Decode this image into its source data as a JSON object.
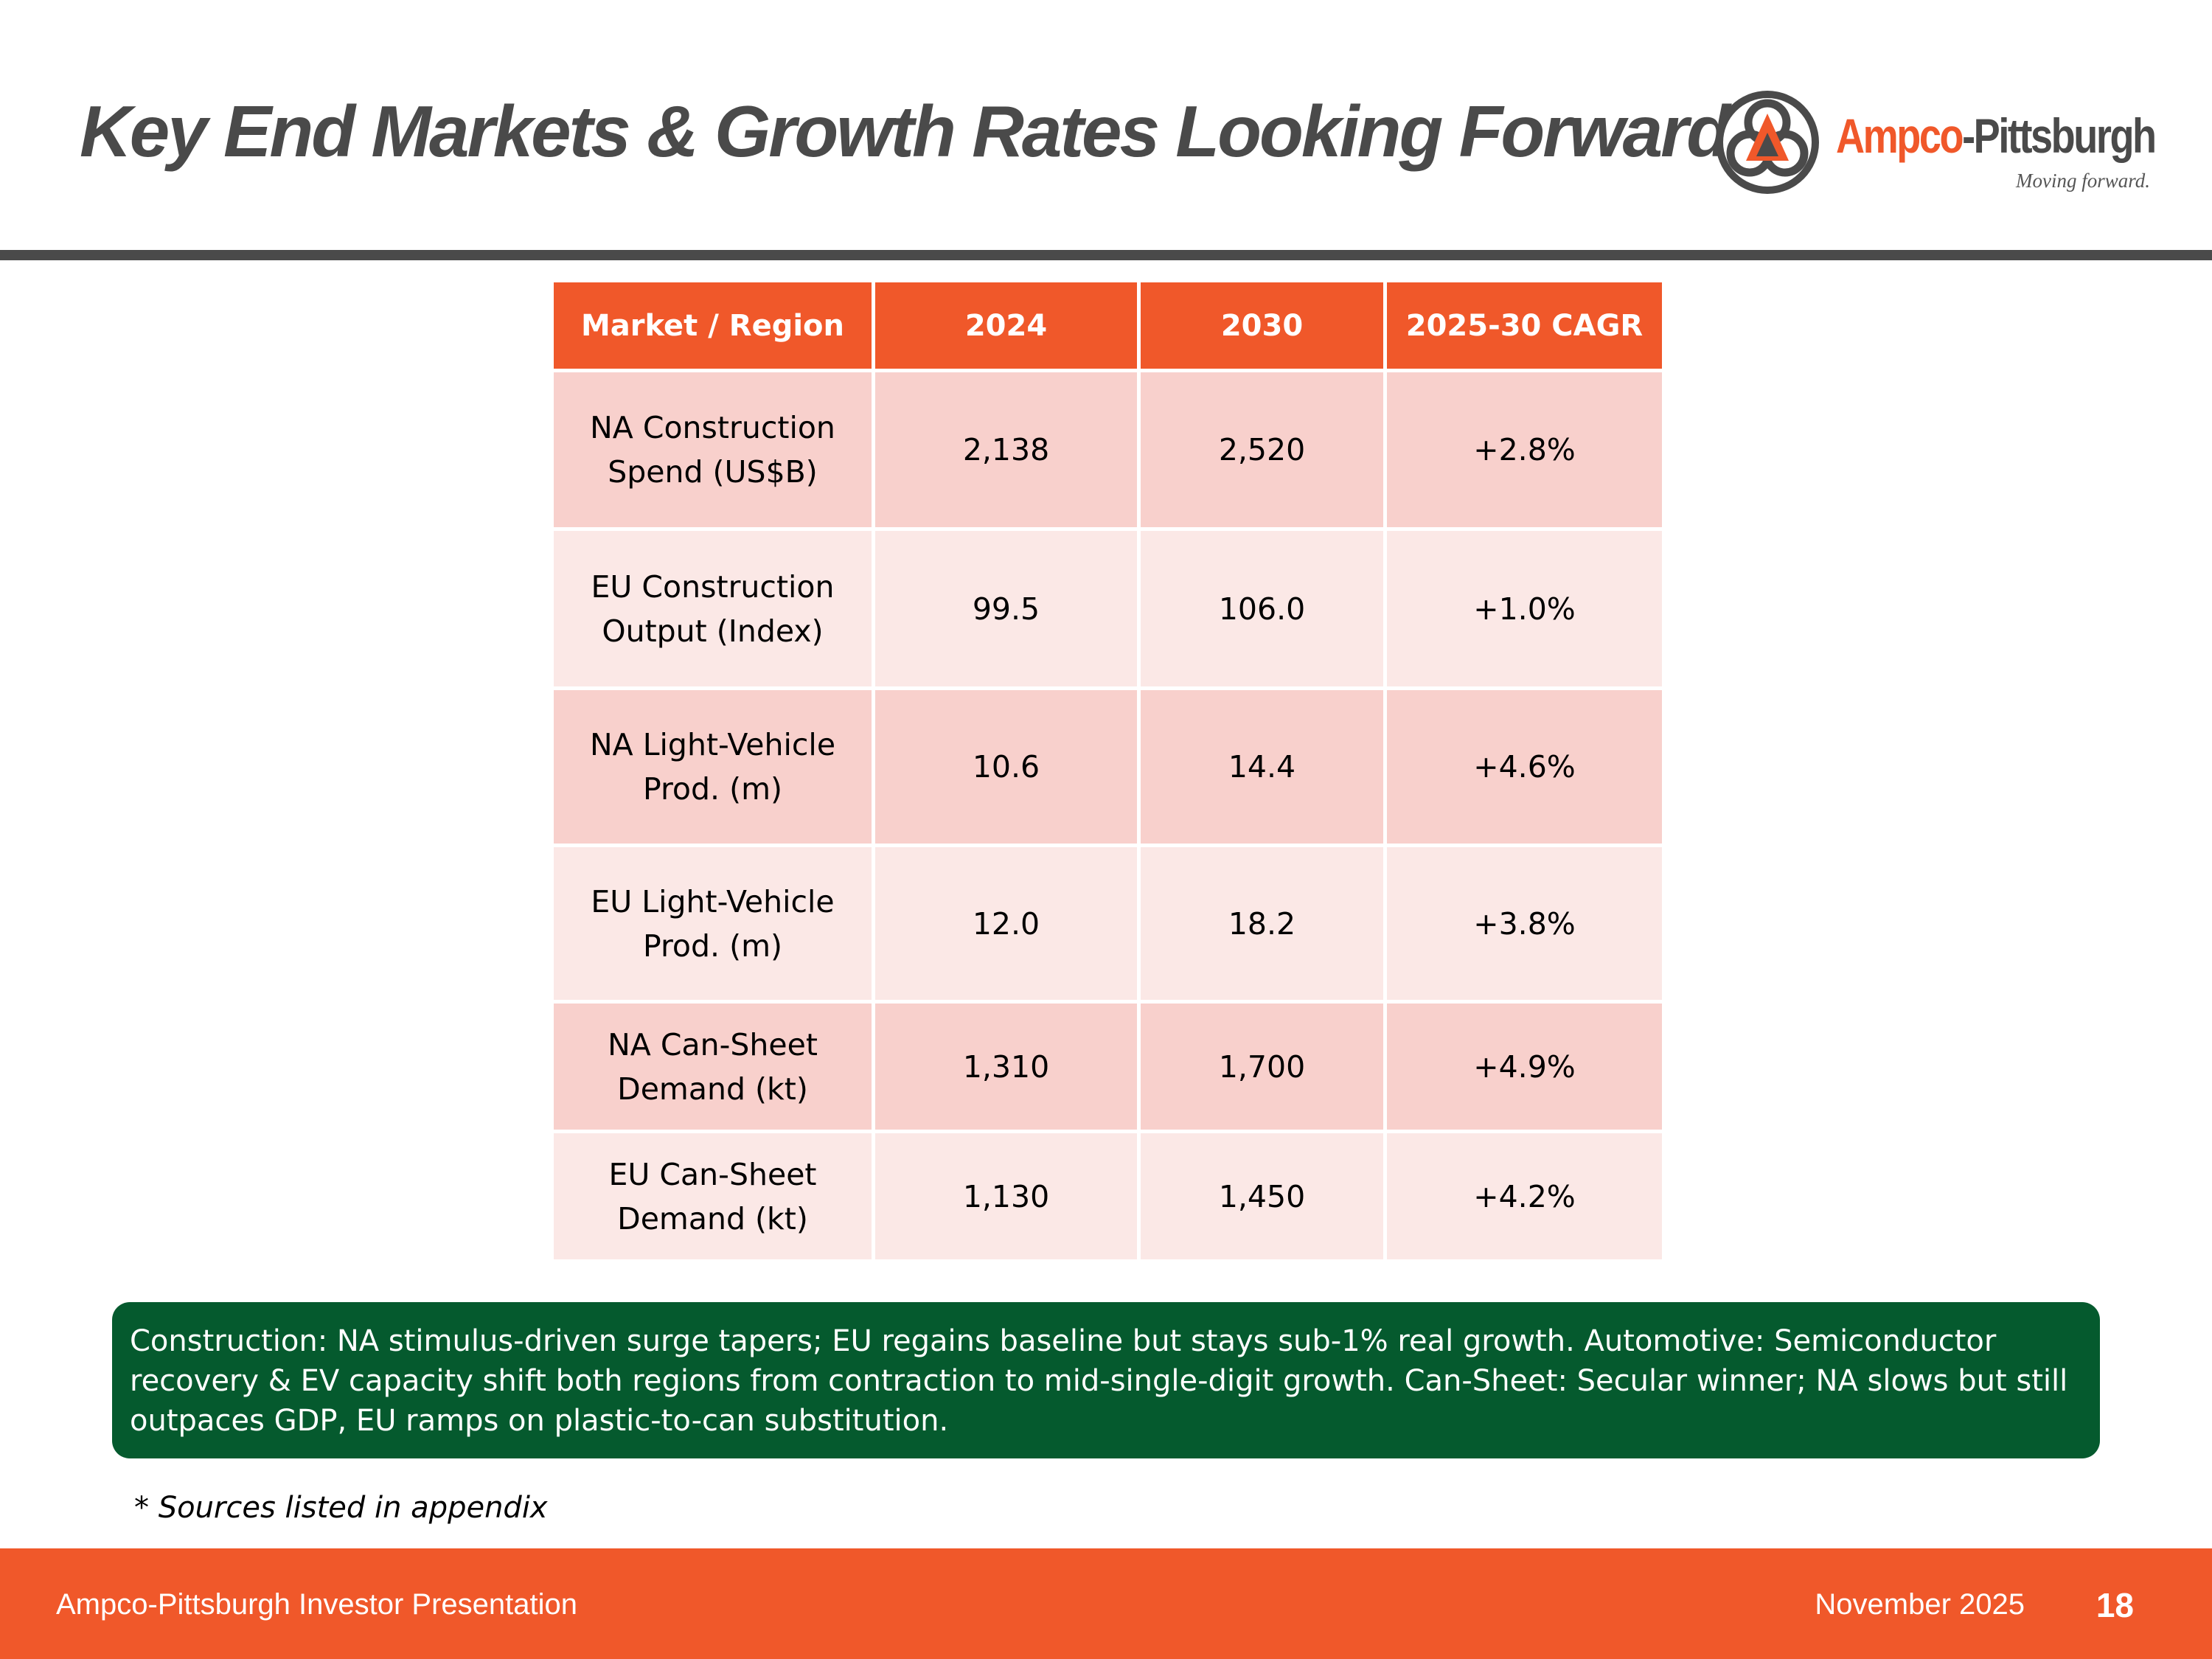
{
  "slide": {
    "title": "Key End Markets & Growth Rates Looking Forward"
  },
  "logo": {
    "name_part1": "Ampco",
    "name_part2": "-Pittsburgh",
    "tagline": "Moving forward.",
    "icon": "ampco-trefoil-logo-icon"
  },
  "table": {
    "headers": [
      "Market / Region",
      "2024",
      "2030",
      "2025-30 CAGR"
    ],
    "rows": [
      {
        "market_line1": "NA Construction",
        "market_line2": "Spend (US$B)",
        "y2024": "2,138",
        "y2030": "2,520",
        "cagr": "+2.8%"
      },
      {
        "market_line1": "EU Construction",
        "market_line2": "Output (Index)",
        "y2024": "99.5",
        "y2030": "106.0",
        "cagr": "+1.0%"
      },
      {
        "market_line1": "NA Light-Vehicle",
        "market_line2": "Prod. (m)",
        "y2024": "10.6",
        "y2030": "14.4",
        "cagr": "+4.6%"
      },
      {
        "market_line1": "EU Light-Vehicle",
        "market_line2": "Prod. (m)",
        "y2024": "12.0",
        "y2030": "18.2",
        "cagr": "+3.8%"
      },
      {
        "market_line1": "NA Can-Sheet",
        "market_line2": "Demand (kt)",
        "y2024": "1,310",
        "y2030": "1,700",
        "cagr": "+4.9%"
      },
      {
        "market_line1": "EU Can-Sheet",
        "market_line2": "Demand (kt)",
        "y2024": "1,130",
        "y2030": "1,450",
        "cagr": "+4.2%"
      }
    ]
  },
  "callout": {
    "text": "Construction: NA stimulus-driven surge tapers; EU regains baseline but stays sub-1% real growth. Automotive: Semiconductor recovery & EV capacity shift both regions from contraction to mid-single-digit growth. Can-Sheet: Secular winner; NA slows but still outpaces GDP, EU ramps on plastic-to-can substitution."
  },
  "sources_note": "* Sources listed in appendix",
  "footer": {
    "left": "Ampco-Pittsburgh Investor Presentation",
    "date": "November 2025",
    "page": "18"
  },
  "colors": {
    "accent_orange": "#f0582a",
    "title_gray": "#4a4a4a",
    "row_dark": "#f8d0cc",
    "row_light": "#fbe8e6",
    "callout_green": "#055a2e"
  }
}
